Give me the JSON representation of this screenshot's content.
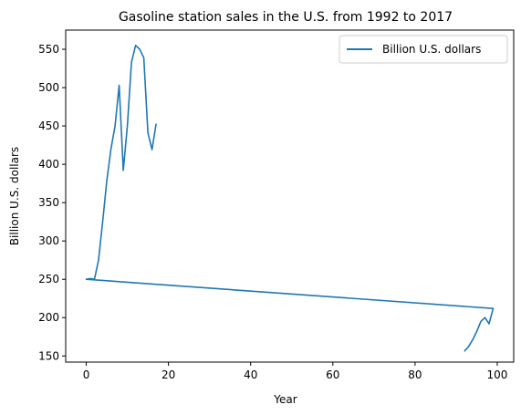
{
  "chart_data": {
    "type": "line",
    "title": "Gasoline station sales in the U.S. from 1992 to 2017",
    "xlabel": "Year",
    "ylabel": "Billion U.S. dollars",
    "xlim": [
      -5,
      104
    ],
    "ylim": [
      142,
      575
    ],
    "xticks": [
      0,
      20,
      40,
      60,
      80,
      100
    ],
    "yticks": [
      150,
      200,
      250,
      300,
      350,
      400,
      450,
      500,
      550
    ],
    "legend": {
      "position": "top-right"
    },
    "grid": false,
    "series": [
      {
        "name": "Billion U.S. dollars",
        "color": "#1f77b4",
        "x": [
          92,
          93,
          94,
          95,
          96,
          97,
          98,
          99,
          0,
          1,
          2,
          3,
          4,
          5,
          6,
          7,
          8,
          9,
          10,
          11,
          12,
          13,
          14,
          15,
          16,
          17
        ],
        "y": [
          156,
          162,
          171,
          182,
          195,
          200,
          192,
          212,
          250,
          251,
          250,
          275,
          325,
          378,
          420,
          450,
          503,
          392,
          450,
          533,
          555,
          550,
          539,
          441,
          419,
          453
        ]
      }
    ]
  }
}
